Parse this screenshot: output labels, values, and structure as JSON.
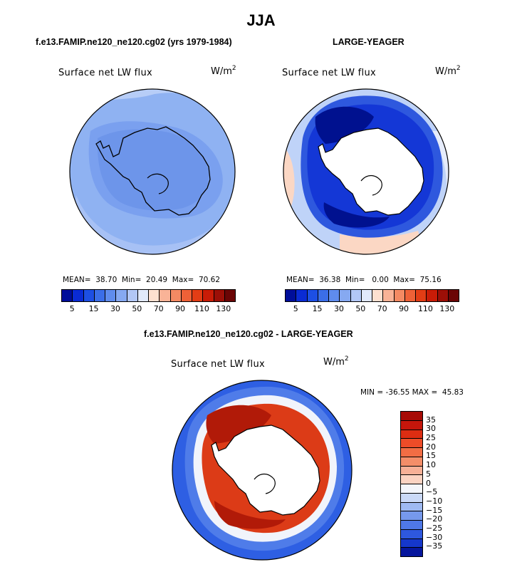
{
  "title": "JJA",
  "panels": [
    {
      "header": "f.e13.FAMIP.ne120_ne120.cg02 (yrs 1979-1984)",
      "label": "Surface net LW flux",
      "units_base": "W/m",
      "units_exp": "2",
      "stats": "MEAN=  38.70  Min=  20.49  Max=  70.62",
      "field_colors": {
        "ocean": "#8fb2f2",
        "patch": "#7aa0ef",
        "light": "#b7cdf7",
        "land": "#6d95ea"
      }
    },
    {
      "header": "LARGE-YEAGER",
      "label": "Surface net LW flux",
      "units_base": "W/m",
      "units_exp": "2",
      "stats": "MEAN=  36.38  Min=   0.00  Max=  75.16",
      "field_colors": {
        "ocean": "#bfd3f8",
        "ring": "#1437d6",
        "deep": "#00118f",
        "warm": "#fbd7c4",
        "land": "#ffffff"
      }
    }
  ],
  "shared_colorbar": {
    "colors": [
      "#000e9a",
      "#0a2bd4",
      "#1d4fe4",
      "#3b6ee8",
      "#5f8ced",
      "#86a9f1",
      "#b2c7f6",
      "#e1e9fb",
      "#fde0d0",
      "#f9b397",
      "#f48a63",
      "#ee6137",
      "#e23d15",
      "#c91c07",
      "#9c0f07",
      "#6b0505"
    ],
    "tick_labels": [
      "5",
      "15",
      "30",
      "50",
      "70",
      "90",
      "110",
      "130"
    ]
  },
  "diff_panel": {
    "header": "f.e13.FAMIP.ne120_ne120.cg02 - LARGE-YEAGER",
    "label": "Surface net LW flux",
    "units_base": "W/m",
    "units_exp": "2",
    "stats": "MIN = -36.55 MAX =  45.83",
    "colorbar": {
      "colors": [
        "#a70b06",
        "#c5160b",
        "#dd2d12",
        "#ee4c28",
        "#f26d44",
        "#f48e69",
        "#f7b097",
        "#fbd3c2",
        "#f4f6fb",
        "#cad9f7",
        "#9fbaf2",
        "#7699ec",
        "#4f78e6",
        "#2e58de",
        "#1537cb",
        "#06169d"
      ],
      "tick_labels": [
        "35",
        "30",
        "25",
        "20",
        "15",
        "10",
        "5",
        "0",
        "−5",
        "−10",
        "−15",
        "−20",
        "−25",
        "−30",
        "−35"
      ]
    },
    "field_colors": {
      "outer": "#2e5fe3",
      "mid": "#4f7ce9",
      "fringe": "#f1f4fb",
      "warm": "#dc3b17",
      "hot": "#b11a08",
      "land": "#ffffff"
    }
  }
}
